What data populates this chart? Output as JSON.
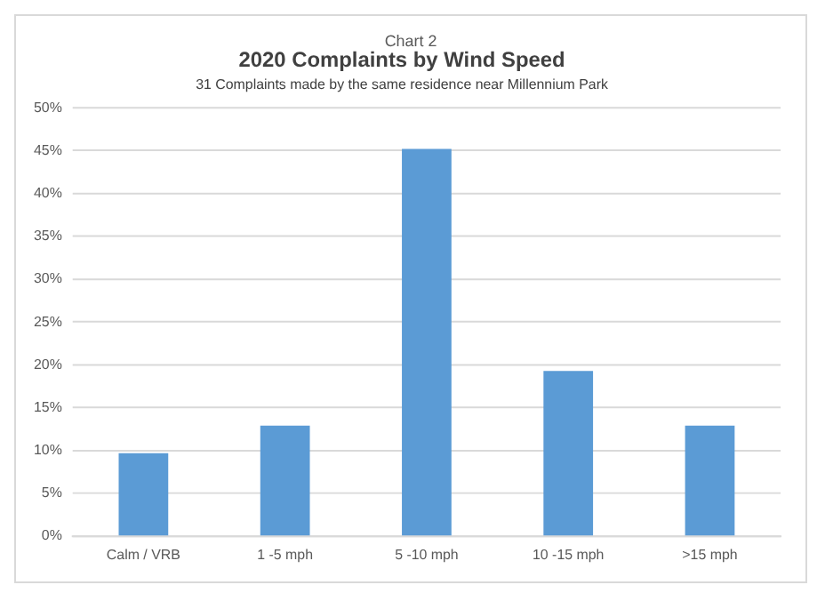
{
  "chart_data": {
    "type": "bar",
    "title": "2020 Complaints by Wind Speed",
    "subtitle": "31 Complaints made by the same residence near Millennium Park",
    "annotations": [
      "Chart 2"
    ],
    "categories": [
      "Calm / VRB",
      "1 -5 mph",
      "5 -10 mph",
      "10 -15 mph",
      ">15 mph"
    ],
    "values": [
      9.7,
      12.9,
      45.2,
      19.3,
      12.9
    ],
    "color": "#5b9bd5",
    "ylim": [
      0,
      50
    ],
    "yticks": [
      {
        "value": 0,
        "label": "0%"
      },
      {
        "value": 5,
        "label": "5%"
      },
      {
        "value": 10,
        "label": "10%"
      },
      {
        "value": 15,
        "label": "15%"
      },
      {
        "value": 20,
        "label": "20%"
      },
      {
        "value": 25,
        "label": "25%"
      },
      {
        "value": 30,
        "label": "30%"
      },
      {
        "value": 35,
        "label": "35%"
      },
      {
        "value": 40,
        "label": "40%"
      },
      {
        "value": 45,
        "label": "45%"
      },
      {
        "value": 50,
        "label": "50%"
      }
    ],
    "grid": "y",
    "legend": false
  }
}
